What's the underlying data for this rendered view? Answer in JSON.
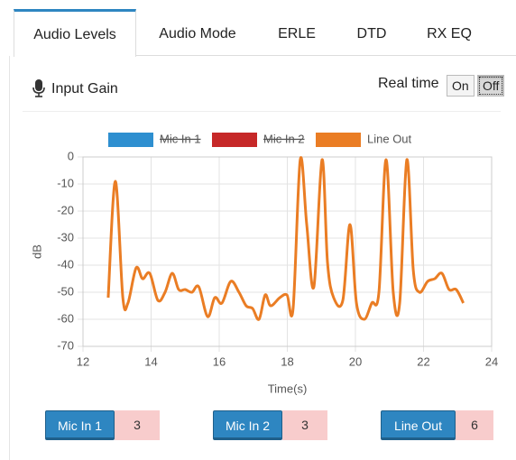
{
  "tabs": [
    {
      "label": "Audio Levels",
      "active": true
    },
    {
      "label": "Audio Mode",
      "active": false
    },
    {
      "label": "ERLE",
      "active": false
    },
    {
      "label": "DTD",
      "active": false
    },
    {
      "label": "RX EQ",
      "active": false
    }
  ],
  "header": {
    "title": "Input Gain",
    "realtime_label": "Real time",
    "toggle": [
      "On",
      "Off"
    ],
    "toggle_selected": 1
  },
  "chart_data": {
    "type": "line",
    "xlabel": "Time(s)",
    "ylabel": "dB",
    "x": [
      12.74,
      12.95,
      13.17,
      13.32,
      13.56,
      13.75,
      13.96,
      14.2,
      14.41,
      14.62,
      14.81,
      15.0,
      15.2,
      15.4,
      15.66,
      15.87,
      16.08,
      16.34,
      16.58,
      16.79,
      16.98,
      17.17,
      17.35,
      17.51,
      17.78,
      17.99,
      18.17,
      18.38,
      18.57,
      18.78,
      19.02,
      19.18,
      19.36,
      19.63,
      19.84,
      20.03,
      20.26,
      20.48,
      20.69,
      20.9,
      21.11,
      21.3,
      21.51,
      21.7,
      21.88,
      22.12,
      22.33,
      22.54,
      22.75,
      22.96,
      23.17
    ],
    "series": [
      {
        "name": "Mic In 1",
        "color": "#2e8fd0",
        "hidden": true
      },
      {
        "name": "Mic In 2",
        "color": "#c62828",
        "hidden": true
      },
      {
        "name": "Line Out",
        "color": "#ea7d24",
        "values": [
          -52,
          -9,
          -52,
          -54,
          -41,
          -45,
          -43,
          -53,
          -50,
          -43,
          -49,
          -49,
          -50,
          -48,
          -59,
          -52,
          -54,
          -46,
          -50,
          -55,
          -56,
          -60,
          -51,
          -55,
          -52,
          -51,
          -56,
          -1,
          -25,
          -48,
          -1,
          -39,
          -52,
          -53,
          -25,
          -54,
          -60,
          -54,
          -50,
          -1,
          -50,
          -54,
          -1,
          -42,
          -50,
          -46,
          -45,
          -43,
          -49,
          -49,
          -54
        ]
      }
    ],
    "xlim": [
      12,
      24
    ],
    "xticks": [
      12,
      14,
      16,
      18,
      20,
      22,
      24
    ],
    "ylim": [
      -70,
      0
    ],
    "yticks": [
      0,
      -10,
      -20,
      -30,
      -40,
      -50,
      -60,
      -70
    ],
    "grid": true
  },
  "counters": [
    {
      "label": "Mic In 1",
      "value": "3"
    },
    {
      "label": "Mic In 2",
      "value": "3"
    },
    {
      "label": "Line Out",
      "value": "6"
    }
  ]
}
